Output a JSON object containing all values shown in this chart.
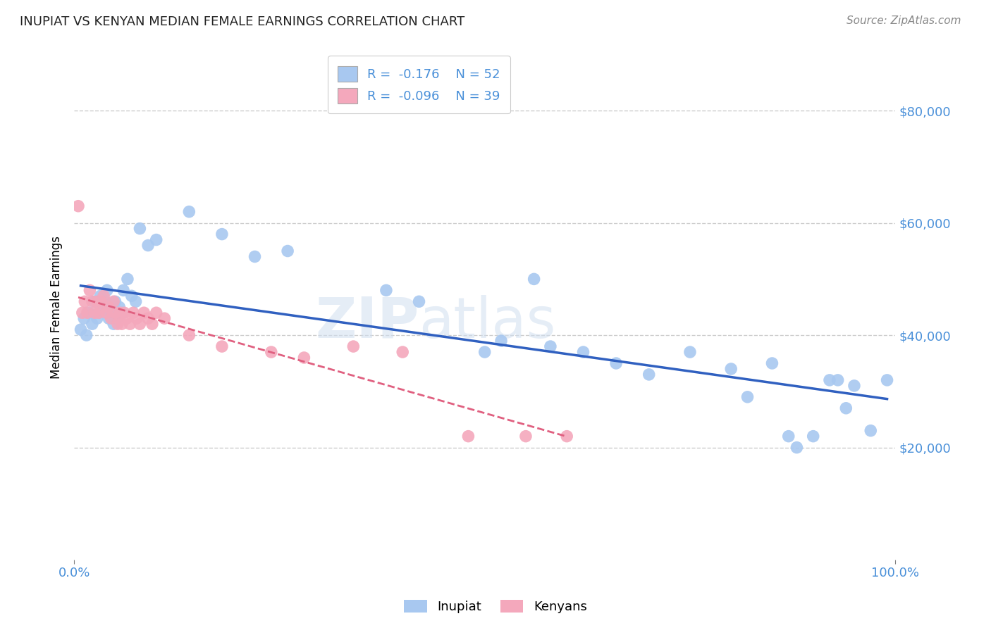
{
  "title": "INUPIAT VS KENYAN MEDIAN FEMALE EARNINGS CORRELATION CHART",
  "source_text": "Source: ZipAtlas.com",
  "ylabel": "Median Female Earnings",
  "xlim": [
    0.0,
    1.0
  ],
  "ylim": [
    0,
    90000
  ],
  "yticks": [
    20000,
    40000,
    60000,
    80000
  ],
  "ytick_labels": [
    "$20,000",
    "$40,000",
    "$60,000",
    "$80,000"
  ],
  "xtick_labels": [
    "0.0%",
    "100.0%"
  ],
  "legend_labels": [
    "Inupiat",
    "Kenyans"
  ],
  "r_inupiat": -0.176,
  "n_inupiat": 52,
  "r_kenyan": -0.096,
  "n_kenyan": 39,
  "color_inupiat": "#a8c8f0",
  "color_kenyan": "#f4a8bc",
  "color_inupiat_line": "#3060c0",
  "color_kenyan_line": "#e06080",
  "watermark_zip": "ZIP",
  "watermark_atlas": "atlas",
  "background_color": "#ffffff",
  "inupiat_x": [
    0.008,
    0.012,
    0.015,
    0.018,
    0.022,
    0.025,
    0.028,
    0.03,
    0.032,
    0.035,
    0.038,
    0.04,
    0.042,
    0.045,
    0.048,
    0.05,
    0.052,
    0.055,
    0.058,
    0.06,
    0.065,
    0.07,
    0.075,
    0.08,
    0.09,
    0.1,
    0.14,
    0.18,
    0.22,
    0.26,
    0.38,
    0.42,
    0.5,
    0.52,
    0.56,
    0.58,
    0.62,
    0.66,
    0.7,
    0.75,
    0.8,
    0.82,
    0.85,
    0.87,
    0.88,
    0.9,
    0.92,
    0.93,
    0.94,
    0.95,
    0.97,
    0.99
  ],
  "inupiat_y": [
    41000,
    43000,
    40000,
    44000,
    42000,
    46000,
    43000,
    44000,
    47000,
    45000,
    46000,
    48000,
    43000,
    44000,
    42000,
    46000,
    43000,
    45000,
    44000,
    48000,
    50000,
    47000,
    46000,
    59000,
    56000,
    57000,
    62000,
    58000,
    54000,
    55000,
    48000,
    46000,
    37000,
    39000,
    50000,
    38000,
    37000,
    35000,
    33000,
    37000,
    34000,
    29000,
    35000,
    22000,
    20000,
    22000,
    32000,
    32000,
    27000,
    31000,
    23000,
    32000
  ],
  "kenyan_x": [
    0.005,
    0.01,
    0.013,
    0.016,
    0.019,
    0.022,
    0.025,
    0.028,
    0.03,
    0.033,
    0.036,
    0.039,
    0.042,
    0.045,
    0.048,
    0.05,
    0.053,
    0.056,
    0.058,
    0.061,
    0.064,
    0.068,
    0.072,
    0.076,
    0.08,
    0.085,
    0.09,
    0.095,
    0.1,
    0.11,
    0.14,
    0.18,
    0.24,
    0.28,
    0.34,
    0.4,
    0.48,
    0.55,
    0.6
  ],
  "kenyan_y": [
    63000,
    44000,
    46000,
    44000,
    48000,
    46000,
    44000,
    46000,
    44000,
    46000,
    47000,
    44000,
    45000,
    43000,
    46000,
    44000,
    42000,
    44000,
    42000,
    44000,
    43000,
    42000,
    44000,
    43000,
    42000,
    44000,
    43000,
    42000,
    44000,
    43000,
    40000,
    38000,
    37000,
    36000,
    38000,
    37000,
    22000,
    22000,
    22000
  ]
}
